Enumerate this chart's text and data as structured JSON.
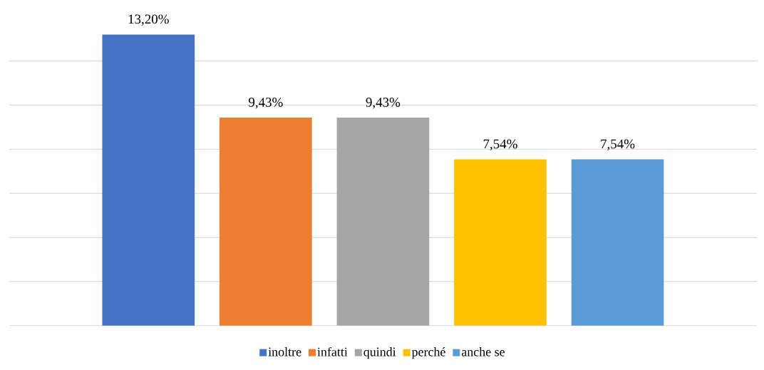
{
  "chart_data": {
    "type": "bar",
    "categories": [
      null
    ],
    "series": [
      {
        "name": "inoltre",
        "color": "#4472c4",
        "values": [
          13.2
        ],
        "value_labels": [
          "13,20%"
        ]
      },
      {
        "name": "infatti",
        "color": "#ed7d31",
        "values": [
          9.43
        ],
        "value_labels": [
          "9,43%"
        ]
      },
      {
        "name": "quindi",
        "color": "#a5a5a5",
        "values": [
          9.43
        ],
        "value_labels": [
          "9,43%"
        ]
      },
      {
        "name": "perché",
        "color": "#ffc000",
        "values": [
          7.54
        ],
        "value_labels": [
          "7,54%"
        ]
      },
      {
        "name": "anche se",
        "color": "#5b9bd5",
        "values": [
          7.54
        ],
        "value_labels": [
          "7,54%"
        ]
      }
    ],
    "grid": "y",
    "legend": "bottom"
  }
}
